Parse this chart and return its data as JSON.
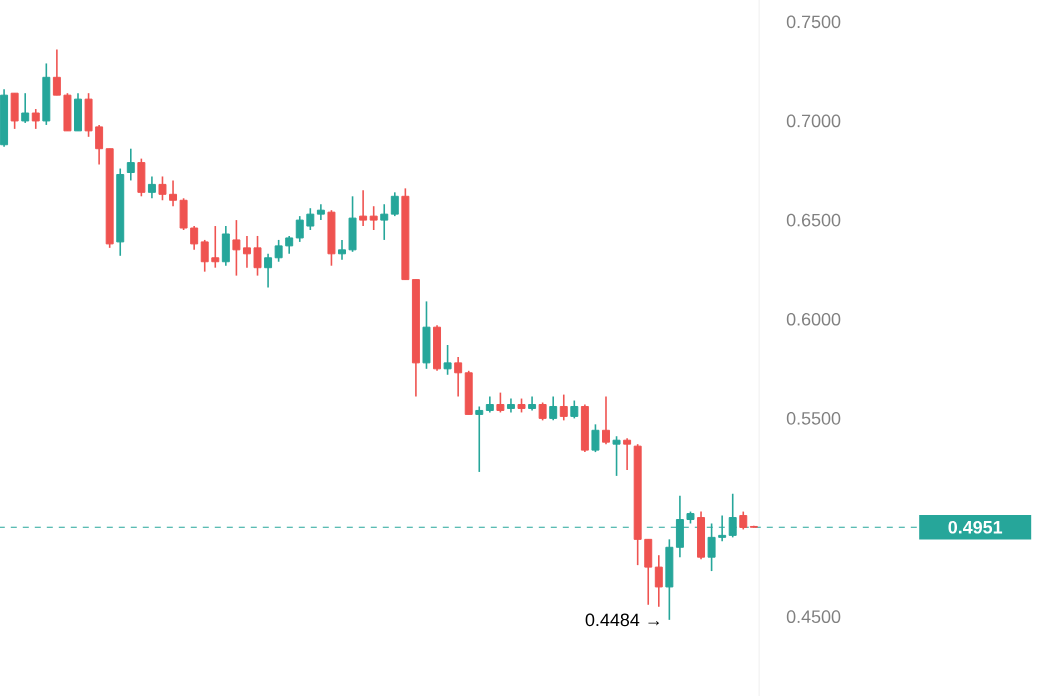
{
  "chart_data": {
    "type": "candlestick",
    "categories": [
      null,
      null,
      null,
      null,
      null,
      null,
      null,
      null,
      null,
      null,
      null,
      null,
      null,
      null,
      null,
      null,
      null,
      null,
      null,
      null,
      null,
      null,
      null,
      null,
      null,
      null,
      null,
      null,
      null,
      null,
      null,
      null,
      null,
      null,
      null,
      null,
      null,
      null,
      null,
      null,
      null,
      null,
      null,
      null,
      null,
      null,
      null,
      null,
      null,
      null,
      null,
      null,
      null,
      null,
      null,
      null,
      null,
      null,
      null,
      null,
      null,
      null,
      null,
      null,
      null,
      null,
      null,
      null,
      null,
      null,
      null,
      null
    ],
    "ohlc": [
      [
        0.688,
        0.716,
        0.687,
        0.713
      ],
      [
        0.714,
        0.714,
        0.696,
        0.7
      ],
      [
        0.7,
        0.714,
        0.699,
        0.704
      ],
      [
        0.704,
        0.706,
        0.696,
        0.7
      ],
      [
        0.7,
        0.729,
        0.698,
        0.722
      ],
      [
        0.722,
        0.736,
        0.713,
        0.713
      ],
      [
        0.713,
        0.714,
        0.695,
        0.695
      ],
      [
        0.695,
        0.714,
        0.695,
        0.711
      ],
      [
        0.711,
        0.714,
        0.692,
        0.695
      ],
      [
        0.697,
        0.698,
        0.678,
        0.686
      ],
      [
        0.686,
        0.686,
        0.636,
        0.638
      ],
      [
        0.639,
        0.676,
        0.632,
        0.673
      ],
      [
        0.674,
        0.686,
        0.67,
        0.679
      ],
      [
        0.679,
        0.681,
        0.662,
        0.664
      ],
      [
        0.664,
        0.672,
        0.661,
        0.668
      ],
      [
        0.668,
        0.672,
        0.66,
        0.663
      ],
      [
        0.663,
        0.67,
        0.657,
        0.66
      ],
      [
        0.66,
        0.661,
        0.645,
        0.646
      ],
      [
        0.646,
        0.647,
        0.635,
        0.638
      ],
      [
        0.639,
        0.64,
        0.624,
        0.629
      ],
      [
        0.631,
        0.647,
        0.626,
        0.629
      ],
      [
        0.629,
        0.647,
        0.627,
        0.643
      ],
      [
        0.64,
        0.65,
        0.622,
        0.635
      ],
      [
        0.636,
        0.642,
        0.626,
        0.633
      ],
      [
        0.636,
        0.642,
        0.622,
        0.626
      ],
      [
        0.626,
        0.633,
        0.616,
        0.631
      ],
      [
        0.631,
        0.64,
        0.629,
        0.637
      ],
      [
        0.637,
        0.642,
        0.633,
        0.641
      ],
      [
        0.641,
        0.652,
        0.639,
        0.65
      ],
      [
        0.647,
        0.656,
        0.645,
        0.653
      ],
      [
        0.653,
        0.658,
        0.65,
        0.655
      ],
      [
        0.654,
        0.655,
        0.627,
        0.633
      ],
      [
        0.633,
        0.64,
        0.63,
        0.635
      ],
      [
        0.635,
        0.662,
        0.634,
        0.651
      ],
      [
        0.652,
        0.665,
        0.647,
        0.65
      ],
      [
        0.652,
        0.657,
        0.645,
        0.65
      ],
      [
        0.65,
        0.658,
        0.64,
        0.653
      ],
      [
        0.653,
        0.664,
        0.652,
        0.662
      ],
      [
        0.662,
        0.666,
        0.62,
        0.62
      ],
      [
        0.62,
        0.62,
        0.561,
        0.578
      ],
      [
        0.578,
        0.609,
        0.575,
        0.596
      ],
      [
        0.596,
        0.597,
        0.574,
        0.575
      ],
      [
        0.575,
        0.587,
        0.572,
        0.578
      ],
      [
        0.578,
        0.581,
        0.561,
        0.573
      ],
      [
        0.573,
        0.574,
        0.552,
        0.552
      ],
      [
        0.552,
        0.556,
        0.523,
        0.554
      ],
      [
        0.554,
        0.561,
        0.553,
        0.557
      ],
      [
        0.557,
        0.563,
        0.553,
        0.554
      ],
      [
        0.555,
        0.56,
        0.553,
        0.557
      ],
      [
        0.557,
        0.56,
        0.553,
        0.555
      ],
      [
        0.555,
        0.561,
        0.554,
        0.557
      ],
      [
        0.557,
        0.558,
        0.549,
        0.55
      ],
      [
        0.55,
        0.561,
        0.549,
        0.556
      ],
      [
        0.556,
        0.562,
        0.549,
        0.551
      ],
      [
        0.551,
        0.559,
        0.55,
        0.556
      ],
      [
        0.556,
        0.557,
        0.533,
        0.534
      ],
      [
        0.534,
        0.547,
        0.533,
        0.544
      ],
      [
        0.544,
        0.561,
        0.537,
        0.538
      ],
      [
        0.537,
        0.541,
        0.521,
        0.539
      ],
      [
        0.539,
        0.54,
        0.524,
        0.537
      ],
      [
        0.536,
        0.537,
        0.476,
        0.489
      ],
      [
        0.489,
        0.489,
        0.456,
        0.475
      ],
      [
        0.475,
        0.481,
        0.455,
        0.465
      ],
      [
        0.465,
        0.489,
        0.4484,
        0.485
      ],
      [
        0.485,
        0.511,
        0.48,
        0.499
      ],
      [
        0.499,
        0.503,
        0.497,
        0.502
      ],
      [
        0.5,
        0.503,
        0.479,
        0.48
      ],
      [
        0.48,
        0.497,
        0.473,
        0.49
      ],
      [
        0.49,
        0.501,
        0.488,
        0.491
      ],
      [
        0.491,
        0.512,
        0.49,
        0.5
      ],
      [
        0.501,
        0.503,
        0.494,
        0.495
      ],
      [
        0.4955,
        0.4958,
        0.4948,
        0.4951
      ]
    ],
    "colors": [
      "#26a69a",
      "#ef5350",
      "#26a69a",
      "#ef5350",
      "#26a69a",
      "#ef5350",
      "#ef5350",
      "#26a69a",
      "#ef5350",
      "#ef5350",
      "#ef5350",
      "#26a69a",
      "#26a69a",
      "#ef5350",
      "#26a69a",
      "#ef5350",
      "#ef5350",
      "#ef5350",
      "#ef5350",
      "#ef5350",
      "#ef5350",
      "#26a69a",
      "#ef5350",
      "#ef5350",
      "#ef5350",
      "#26a69a",
      "#26a69a",
      "#26a69a",
      "#26a69a",
      "#26a69a",
      "#26a69a",
      "#ef5350",
      "#26a69a",
      "#26a69a",
      "#ef5350",
      "#ef5350",
      "#26a69a",
      "#26a69a",
      "#ef5350",
      "#ef5350",
      "#26a69a",
      "#ef5350",
      "#26a69a",
      "#ef5350",
      "#ef5350",
      "#26a69a",
      "#26a69a",
      "#ef5350",
      "#26a69a",
      "#ef5350",
      "#26a69a",
      "#ef5350",
      "#26a69a",
      "#ef5350",
      "#26a69a",
      "#ef5350",
      "#26a69a",
      "#ef5350",
      "#26a69a",
      "#ef5350",
      "#ef5350",
      "#ef5350",
      "#ef5350",
      "#26a69a",
      "#26a69a",
      "#26a69a",
      "#ef5350",
      "#26a69a",
      "#26a69a",
      "#26a69a",
      "#ef5350",
      "#ef5350"
    ],
    "ylim": [
      0.41,
      0.761
    ],
    "yticks": [
      {
        "value": 0.45,
        "label": "0.4500"
      },
      {
        "value": 0.55,
        "label": "0.5500"
      },
      {
        "value": 0.6,
        "label": "0.6000"
      },
      {
        "value": 0.65,
        "label": "0.6500"
      },
      {
        "value": 0.7,
        "label": "0.7000"
      },
      {
        "value": 0.75,
        "label": "0.7500"
      }
    ],
    "tick_labels": "y",
    "ref_lines": [
      {
        "axis": "y",
        "value": 0.4951,
        "label": "0.4951",
        "color": "#26a69a",
        "line_style": "dashed"
      }
    ],
    "annotations": [
      "0.4484 →"
    ]
  }
}
